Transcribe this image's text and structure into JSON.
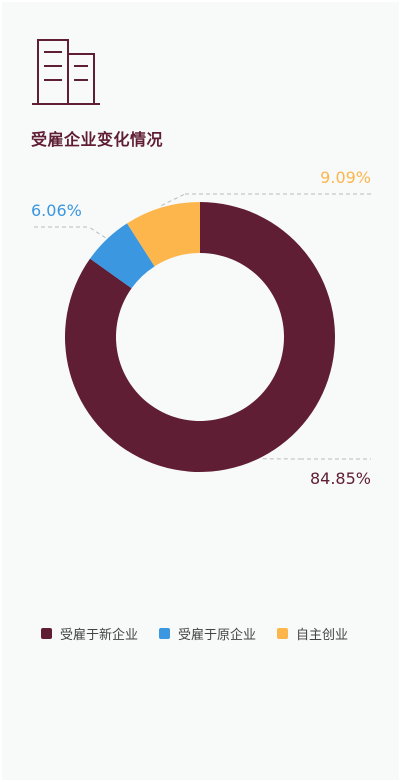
{
  "header": {
    "title": "受雇企业变化情况"
  },
  "chart_data": {
    "type": "pie",
    "variant": "donut",
    "title": "受雇企业变化情况",
    "series": [
      {
        "name": "受雇于新企业",
        "value": 84.85,
        "label": "84.85%",
        "color": "#5f1e33"
      },
      {
        "name": "受雇于原企业",
        "value": 6.06,
        "label": "6.06%",
        "color": "#3a97e0"
      },
      {
        "name": "自主创业",
        "value": 9.09,
        "label": "9.09%",
        "color": "#fdb64b"
      }
    ],
    "legend_position": "bottom"
  },
  "icons": {
    "header_icon": "building-icon"
  }
}
